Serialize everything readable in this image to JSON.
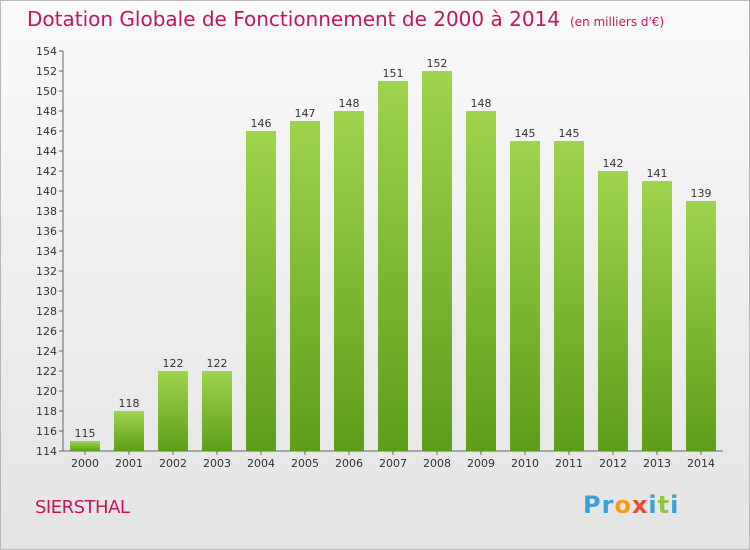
{
  "header": {
    "title": "Dotation Globale de Fonctionnement de 2000 à 2014",
    "subtitle": "(en milliers d'€)"
  },
  "footer": {
    "commune": "SIERSTHAL",
    "logo": "Proxiti"
  },
  "colors": {
    "title": "#c2185b",
    "bar_top": "#9fd44d",
    "bar_bottom": "#5c9e19",
    "logo_letters": [
      "#3aa0d8",
      "#3aa0d8",
      "#f39c12",
      "#e74c3c",
      "#3aa0d8",
      "#8cc63f",
      "#3aa0d8"
    ]
  },
  "chart_data": {
    "type": "bar",
    "title": "Dotation Globale de Fonctionnement de 2000 à 2014",
    "subtitle": "(en milliers d'€)",
    "categories": [
      "2000",
      "2001",
      "2002",
      "2003",
      "2004",
      "2005",
      "2006",
      "2007",
      "2008",
      "2009",
      "2010",
      "2011",
      "2012",
      "2013",
      "2014"
    ],
    "values": [
      115,
      118,
      122,
      122,
      146,
      147,
      148,
      151,
      152,
      148,
      145,
      145,
      142,
      141,
      139
    ],
    "ylim": [
      114,
      154
    ],
    "yticks": [
      114,
      116,
      118,
      120,
      122,
      124,
      126,
      128,
      130,
      132,
      134,
      136,
      138,
      140,
      142,
      144,
      146,
      148,
      150,
      152,
      154
    ],
    "grid": false,
    "xlabel": "",
    "ylabel": ""
  }
}
